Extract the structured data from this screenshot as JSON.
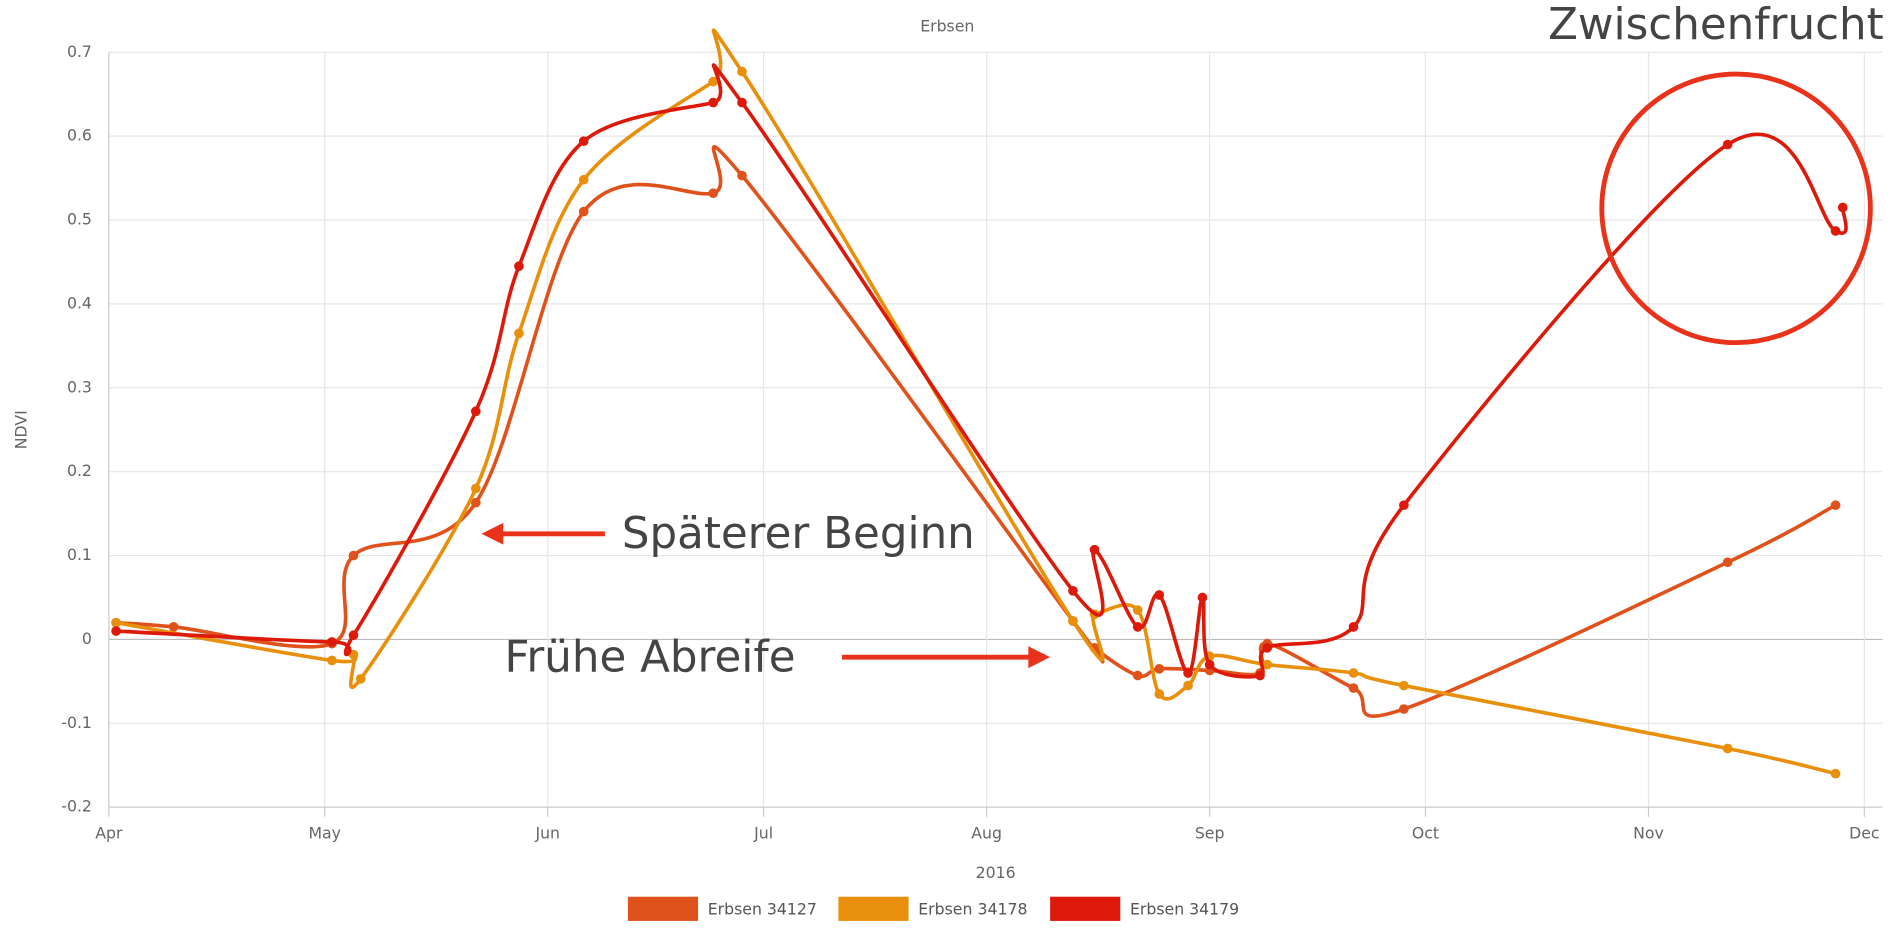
{
  "chart_data": {
    "type": "line",
    "title": "Erbsen",
    "ylabel": "NDVI",
    "xlabel": "2016",
    "annotations": [
      "Zwischenfrucht",
      "Späterer Beginn",
      "Frühe Abreife"
    ],
    "xlim": [
      0,
      244
    ],
    "xticks": [
      {
        "value": 0,
        "label": "Apr"
      },
      {
        "value": 30,
        "label": "May"
      },
      {
        "value": 61,
        "label": "Jun"
      },
      {
        "value": 91,
        "label": "Jul"
      },
      {
        "value": 122,
        "label": "Aug"
      },
      {
        "value": 153,
        "label": "Sep"
      },
      {
        "value": 183,
        "label": "Oct"
      },
      {
        "value": 214,
        "label": "Nov"
      },
      {
        "value": 244,
        "label": "Dec"
      }
    ],
    "ylim": [
      -0.2,
      0.7
    ],
    "yticks": [
      -0.2,
      -0.1,
      0,
      0.1,
      0.2,
      0.3,
      0.4,
      0.5,
      0.6,
      0.7
    ],
    "grid": true,
    "series": [
      {
        "name": "Erbsen 34127",
        "color": "#e0521b",
        "x": [
          1,
          9,
          31,
          34,
          51,
          66,
          84,
          88,
          134,
          137,
          143,
          146,
          153,
          160,
          161,
          173,
          180,
          225,
          240
        ],
        "values": [
          0.02,
          0.015,
          -0.005,
          0.1,
          0.163,
          0.51,
          0.532,
          0.553,
          0.022,
          -0.01,
          -0.043,
          -0.035,
          -0.037,
          -0.04,
          -0.005,
          -0.058,
          -0.083,
          0.092,
          0.16
        ]
      },
      {
        "name": "Erbsen 34178",
        "color": "#e8900c",
        "x": [
          1,
          31,
          34,
          35,
          51,
          57,
          66,
          84,
          88,
          134,
          137,
          143,
          146,
          150,
          153,
          161,
          173,
          180,
          225,
          240
        ],
        "values": [
          0.02,
          -0.025,
          -0.018,
          -0.047,
          0.18,
          0.365,
          0.548,
          0.665,
          0.677,
          0.022,
          0.03,
          0.035,
          -0.065,
          -0.055,
          -0.02,
          -0.03,
          -0.04,
          -0.055,
          -0.13,
          -0.16
        ]
      },
      {
        "name": "Erbsen 34179",
        "color": "#dd1a0a",
        "x": [
          1,
          31,
          34,
          51,
          57,
          66,
          84,
          88,
          134,
          137,
          143,
          146,
          150,
          152,
          153,
          160,
          161,
          173,
          180,
          225,
          240,
          241
        ],
        "values": [
          0.01,
          -0.003,
          0.005,
          0.272,
          0.445,
          0.594,
          0.64,
          0.64,
          0.058,
          0.107,
          0.015,
          0.053,
          -0.04,
          0.05,
          -0.03,
          -0.043,
          -0.01,
          0.015,
          0.16,
          0.59,
          0.487,
          0.515
        ]
      }
    ]
  }
}
